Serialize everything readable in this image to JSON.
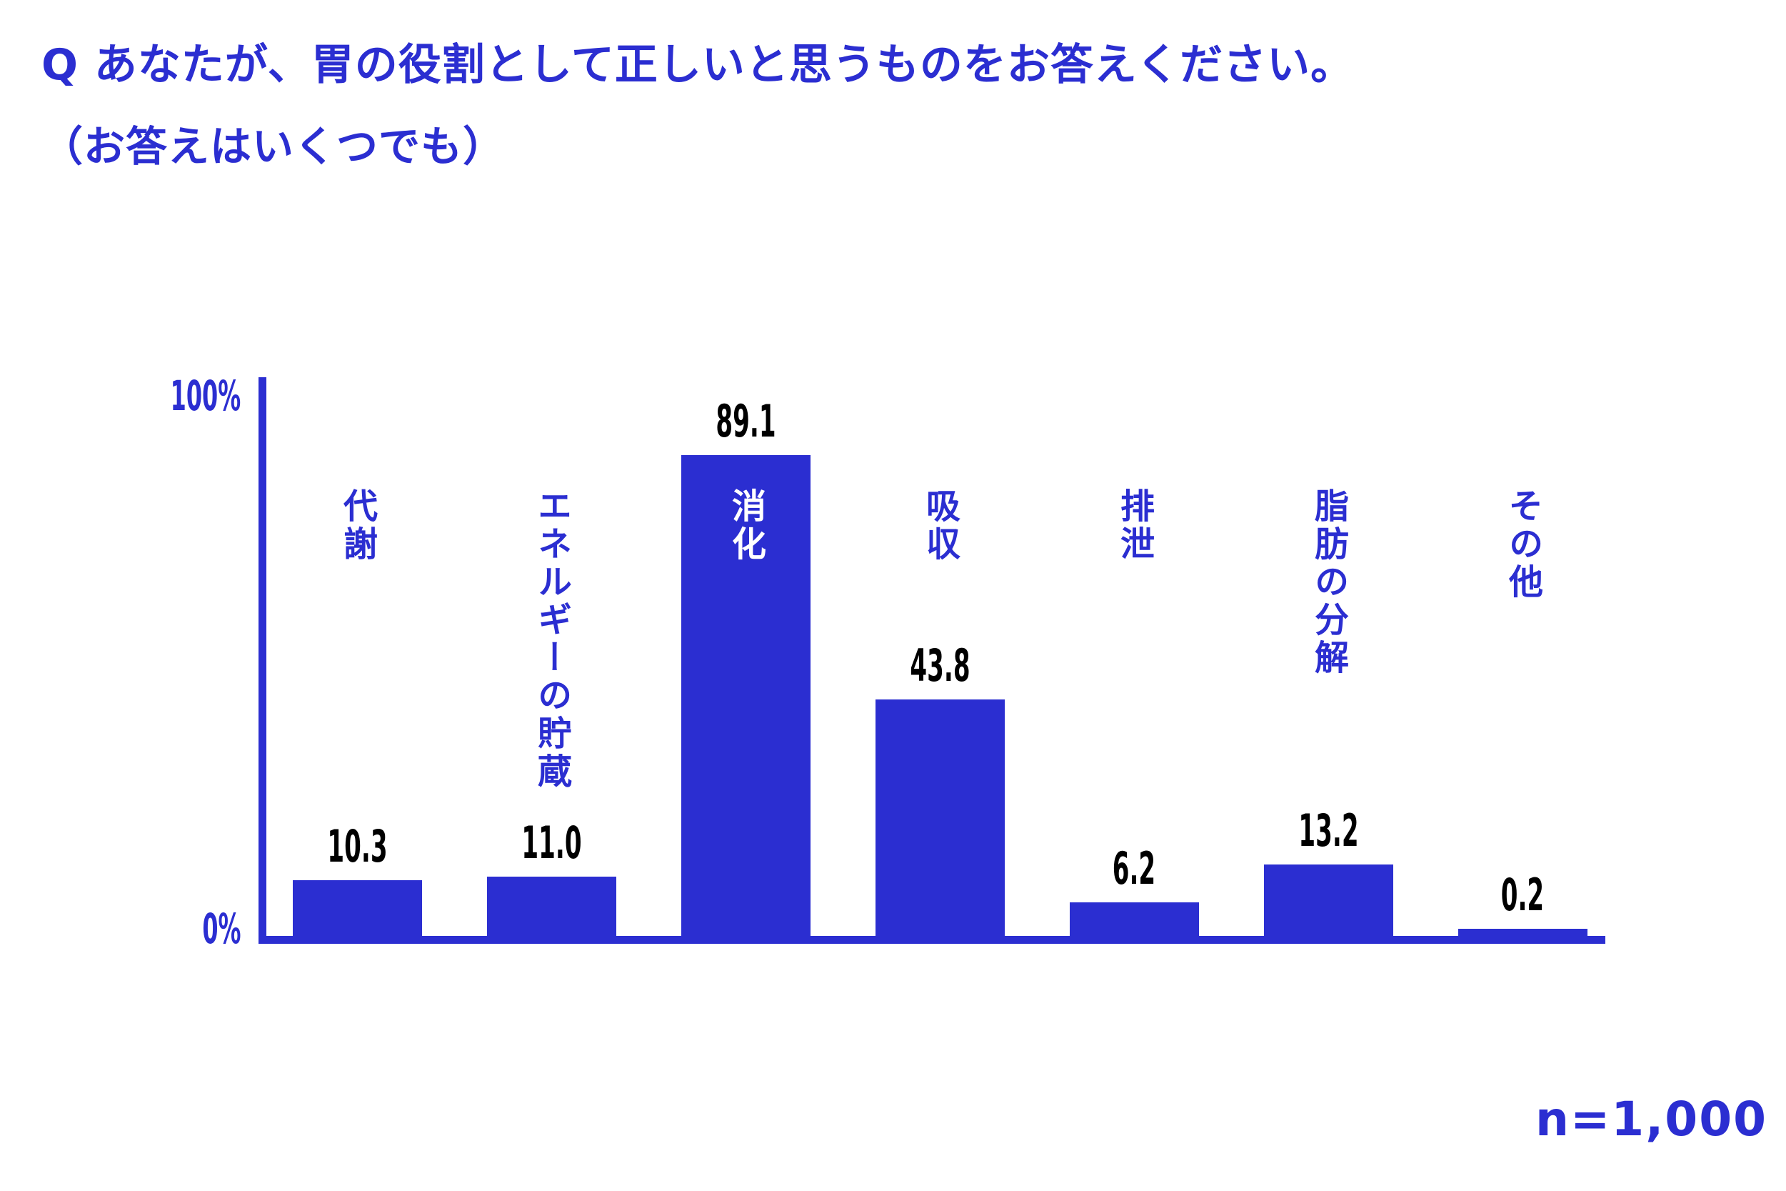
{
  "page": {
    "background": "#ffffff",
    "accent_blue": "#2b2ed1",
    "inside_bar_text_color": "#ffffff"
  },
  "header": {
    "question_line1": "Q あなたが、胃の役割として正しいと思うものをお答えください。",
    "question_line2": "（お答えはいくつでも）"
  },
  "footer": {
    "sample_size_label": "n=1,000"
  },
  "chart_data": {
    "type": "bar",
    "title": "Q あなたが、胃の役割として正しいと思うものをお答えください。",
    "subtitle": "（お答えはいくつでも）",
    "categories": [
      "代謝",
      "エネルギーの貯蔵",
      "消化",
      "吸収",
      "排泄",
      "脂肪の分解",
      "その他"
    ],
    "values": [
      10.3,
      11.0,
      89.1,
      43.8,
      6.2,
      13.2,
      0.2
    ],
    "value_labels": [
      "10.3",
      "11.0",
      "89.1",
      "43.8",
      "6.2",
      "13.2",
      "0.2"
    ],
    "xlabel": "",
    "ylabel": "%",
    "ylim": [
      0,
      100
    ],
    "ytick_top": "100%",
    "ytick_bottom": "0%",
    "grid": false,
    "legend": "none",
    "bar_color": "#2b2ed1",
    "category_label_inside_bar": "消化",
    "inside_label_index": 2,
    "sample_size": "n=1,000"
  }
}
